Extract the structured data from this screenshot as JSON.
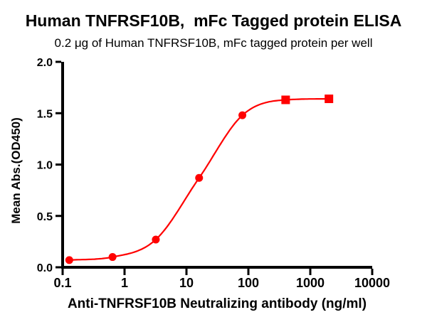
{
  "chart_data": {
    "type": "line",
    "title": "Human TNFRSF10B,  mFc Tagged protein ELISA",
    "subtitle": "0.2 μg of Human TNFRSF10B, mFc tagged protein per well",
    "xlabel": "Anti-TNFRSF10B Neutralizing antibody (ng/ml)",
    "ylabel": "Mean Abs.(OD450)",
    "x_scale": "log",
    "xlim": [
      0.1,
      10000
    ],
    "ylim": [
      0.0,
      2.0
    ],
    "x_tick_values": [
      0.1,
      1,
      10,
      100,
      1000,
      10000
    ],
    "x_tick_labels": [
      "0.1",
      "1",
      "10",
      "100",
      "1000",
      "10000"
    ],
    "y_tick_values": [
      0.0,
      0.5,
      1.0,
      1.5,
      2.0
    ],
    "y_tick_labels": [
      "0.0",
      "0.5",
      "1.0",
      "1.5",
      "2.0"
    ],
    "grid": false,
    "legend": "none",
    "axis_color": "#000000",
    "text_color": "#000000",
    "series": [
      {
        "color": "#ff0000",
        "x": [
          0.128,
          0.64,
          3.2,
          16,
          80,
          400,
          2000
        ],
        "y": [
          0.07,
          0.1,
          0.27,
          0.87,
          1.48,
          1.63,
          1.64
        ],
        "markers": [
          "circle",
          "circle",
          "circle",
          "circle",
          "circle",
          "square",
          "square"
        ]
      }
    ]
  }
}
